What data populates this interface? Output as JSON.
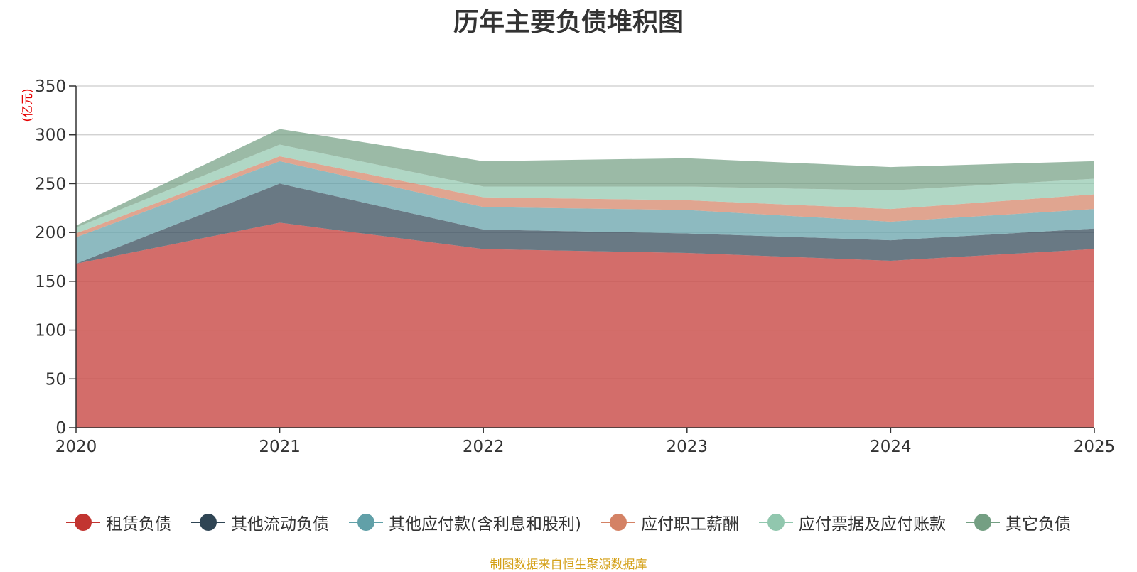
{
  "chart_data": {
    "type": "area",
    "stacked": true,
    "title": "历年主要负债堆积图",
    "ylabel": "(亿元)",
    "xlabel": "",
    "x": [
      "2020",
      "2021",
      "2022",
      "2023",
      "2024",
      "2025"
    ],
    "ylim": [
      0,
      350
    ],
    "yticks": [
      0,
      50,
      100,
      150,
      200,
      250,
      300,
      350
    ],
    "grid": true,
    "legend_position": "bottom",
    "series": [
      {
        "name": "租赁负债",
        "color": "#c23531",
        "values": [
          168,
          210,
          183,
          179,
          171,
          183
        ]
      },
      {
        "name": "其他流动负债",
        "color": "#2f4554",
        "values": [
          0,
          40,
          20,
          20,
          21,
          21
        ]
      },
      {
        "name": "其他应付款(含利息和股利)",
        "color": "#61a0a8",
        "values": [
          27,
          23,
          23,
          24,
          19,
          20
        ]
      },
      {
        "name": "应付职工薪酬",
        "color": "#d48265",
        "values": [
          4,
          5,
          10,
          10,
          13,
          15
        ]
      },
      {
        "name": "应付票据及应付账款",
        "color": "#91c7ae",
        "values": [
          6,
          12,
          11,
          14,
          19,
          16
        ]
      },
      {
        "name": "其它负债",
        "color": "#749f83",
        "values": [
          2,
          16,
          26,
          29,
          24,
          18
        ]
      }
    ]
  },
  "source": "制图数据来自恒生聚源数据库"
}
